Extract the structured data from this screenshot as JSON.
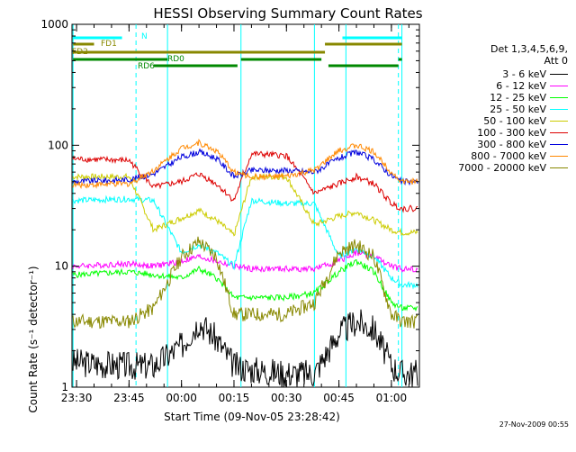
{
  "chart_data": {
    "type": "line",
    "title": "HESSI Observing Summary Count Rates",
    "xlabel": "Start Time (09-Nov-05 23:28:42)",
    "ylabel": "Count Rate (s⁻¹ detector⁻¹)",
    "yscale": "log",
    "ylim": [
      1,
      1000
    ],
    "xlim": [
      "23:28:42",
      "01:08:00"
    ],
    "x_ticks": [
      "23:30",
      "23:45",
      "00:00",
      "00:15",
      "00:30",
      "00:45",
      "01:00"
    ],
    "y_ticks": [
      "1",
      "10",
      "100",
      "1000"
    ],
    "legend_title": "Det 1,3,4,5,6,9,",
    "legend_subtitle": "Att 0",
    "timestamp": "27-Nov-2009 00:55",
    "series": [
      {
        "name": "3 - 6 keV",
        "color": "#000000",
        "x": [
          "23:30",
          "23:45",
          "23:52",
          "00:00",
          "00:05",
          "00:10",
          "00:15",
          "00:20",
          "00:30",
          "00:38",
          "00:45",
          "00:50",
          "00:55",
          "01:00",
          "01:03"
        ],
        "values": [
          1.6,
          1.5,
          1.5,
          2.2,
          3.5,
          2.5,
          1.5,
          1.4,
          1.3,
          1.3,
          2.8,
          3.5,
          3.0,
          1.5,
          1.3
        ]
      },
      {
        "name": "6 - 12 keV",
        "color": "#ff00ff",
        "x": [
          "23:30",
          "23:45",
          "23:52",
          "00:00",
          "00:05",
          "00:10",
          "00:15",
          "00:20",
          "00:30",
          "00:38",
          "00:45",
          "00:50",
          "00:55",
          "01:00",
          "01:03"
        ],
        "values": [
          10,
          10.5,
          10,
          11,
          12,
          11,
          10,
          9.5,
          9.5,
          9.5,
          11,
          13,
          12,
          10,
          9.5
        ]
      },
      {
        "name": "12 - 25 keV",
        "color": "#00ff00",
        "x": [
          "23:30",
          "23:45",
          "23:52",
          "00:00",
          "00:05",
          "00:10",
          "00:15",
          "00:20",
          "00:30",
          "00:38",
          "00:45",
          "00:50",
          "00:55",
          "01:00",
          "01:03"
        ],
        "values": [
          8.5,
          9,
          8.5,
          8,
          9.5,
          8,
          5.5,
          5.5,
          5.5,
          6,
          9,
          11,
          9,
          5,
          4.5
        ]
      },
      {
        "name": "25 - 50 keV",
        "color": "#00ffff",
        "x": [
          "23:30",
          "23:45",
          "23:52",
          "00:00",
          "00:05",
          "00:10",
          "00:15",
          "00:20",
          "00:30",
          "00:38",
          "00:45",
          "00:50",
          "00:55",
          "01:00",
          "01:03"
        ],
        "values": [
          35,
          36,
          35,
          13,
          15,
          13,
          10,
          35,
          33,
          33,
          12,
          14,
          12,
          8,
          7
        ]
      },
      {
        "name": "50 - 100 keV",
        "color": "#cccc00",
        "x": [
          "23:30",
          "23:45",
          "23:52",
          "00:00",
          "00:05",
          "00:10",
          "00:15",
          "00:20",
          "00:30",
          "00:38",
          "00:45",
          "00:50",
          "00:55",
          "01:00",
          "01:03"
        ],
        "values": [
          55,
          55,
          20,
          25,
          29,
          24,
          18,
          55,
          55,
          22,
          26,
          28,
          24,
          20,
          19
        ]
      },
      {
        "name": "100 - 300 keV",
        "color": "#dd0000",
        "x": [
          "23:30",
          "23:45",
          "23:52",
          "00:00",
          "00:05",
          "00:10",
          "00:15",
          "00:20",
          "00:30",
          "00:38",
          "00:45",
          "00:50",
          "00:55",
          "01:00",
          "01:03"
        ],
        "values": [
          77,
          75,
          45,
          50,
          58,
          48,
          35,
          85,
          82,
          40,
          48,
          55,
          48,
          33,
          30
        ]
      },
      {
        "name": "300 - 800 keV",
        "color": "#0000dd",
        "x": [
          "23:30",
          "23:45",
          "23:52",
          "00:00",
          "00:05",
          "00:10",
          "00:15",
          "00:20",
          "00:30",
          "00:38",
          "00:45",
          "00:50",
          "00:55",
          "01:00",
          "01:03"
        ],
        "values": [
          50,
          52,
          58,
          80,
          88,
          78,
          55,
          62,
          62,
          60,
          78,
          88,
          76,
          56,
          50
        ]
      },
      {
        "name": "800 - 7000 keV",
        "color": "#ff8800",
        "x": [
          "23:30",
          "23:45",
          "23:52",
          "00:00",
          "00:05",
          "00:10",
          "00:15",
          "00:20",
          "00:30",
          "00:38",
          "00:45",
          "00:50",
          "00:55",
          "01:00",
          "01:03"
        ],
        "values": [
          47,
          48,
          62,
          95,
          105,
          90,
          60,
          55,
          55,
          62,
          90,
          100,
          88,
          60,
          50
        ]
      },
      {
        "name": "7000 - 20000 keV",
        "color": "#888800",
        "x": [
          "23:30",
          "23:45",
          "23:52",
          "00:00",
          "00:05",
          "00:10",
          "00:15",
          "00:20",
          "00:30",
          "00:38",
          "00:45",
          "00:50",
          "00:55",
          "01:00",
          "01:03"
        ],
        "values": [
          3.5,
          3.5,
          4.5,
          12,
          16,
          12,
          4,
          4,
          4,
          5,
          13,
          15,
          12,
          4,
          3.5
        ]
      }
    ],
    "flag_bars": [
      {
        "label": "N",
        "color": "#00ffff",
        "segments": [
          [
            "23:29",
            "23:43"
          ],
          [
            "00:46",
            "01:03"
          ]
        ]
      },
      {
        "label": "FD1",
        "color": "#888800",
        "segments": [
          [
            "23:29",
            "23:35"
          ],
          [
            "00:41",
            "01:03"
          ]
        ]
      },
      {
        "label": "FD2",
        "color": "#888800",
        "segments": [
          [
            "23:29",
            "00:41"
          ]
        ]
      },
      {
        "label": "RD0",
        "color": "#008800",
        "segments": [
          [
            "23:29",
            "23:56"
          ],
          [
            "00:17",
            "00:40"
          ],
          [
            "01:02",
            "01:03"
          ]
        ]
      },
      {
        "label": "RD6",
        "color": "#008800",
        "segments": [
          [
            "23:52",
            "00:16"
          ],
          [
            "00:42",
            "01:02"
          ]
        ]
      }
    ],
    "vertical_lines": {
      "solid": [
        "23:29",
        "23:56",
        "00:17",
        "00:38",
        "00:47",
        "01:03"
      ],
      "dashed": [
        "23:47",
        "01:02"
      ]
    }
  }
}
